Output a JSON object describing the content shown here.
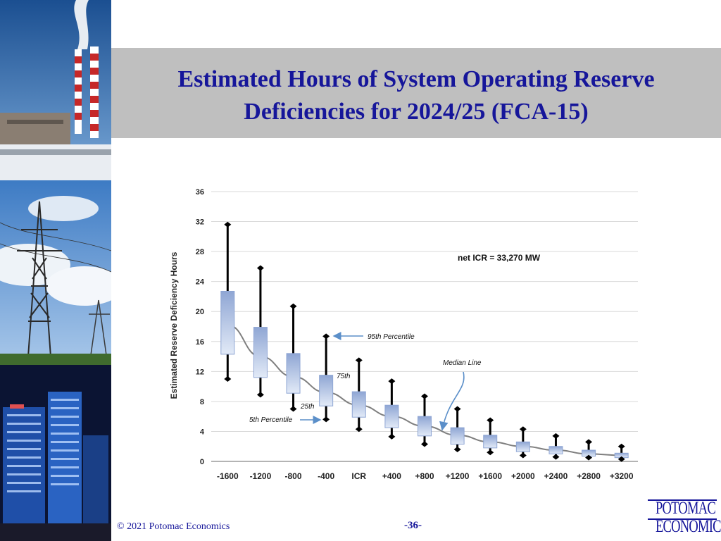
{
  "slide": {
    "title_line1": "Estimated Hours of System Operating Reserve",
    "title_line2": "Deficiencies for 2024/25 (FCA-15)",
    "copyright": "© 2021 Potomac Economics",
    "page_number": "-36-",
    "logo_line1": "POTOMAC",
    "logo_line2": "ECONOMICS",
    "title_color": "#16169a",
    "title_band_color": "#bfbfbf"
  },
  "chart_data": {
    "type": "box",
    "title": "",
    "xlabel": "",
    "ylabel": "Estimated Reserve Deficiency Hours",
    "ylim": [
      0,
      36
    ],
    "yticks": [
      0,
      4,
      8,
      12,
      16,
      20,
      24,
      28,
      32,
      36
    ],
    "grid": true,
    "categories": [
      "-1600",
      "-1200",
      "-800",
      "-400",
      "ICR",
      "+400",
      "+800",
      "+1200",
      "+1600",
      "+2000",
      "+2400",
      "+2800",
      "+3200"
    ],
    "series": [
      {
        "p5": [
          11.0,
          8.9,
          7.0,
          5.6,
          4.3,
          3.3,
          2.3,
          1.6,
          1.2,
          0.8,
          0.6,
          0.5,
          0.3
        ],
        "p25": [
          14.3,
          11.2,
          9.1,
          7.4,
          5.9,
          4.5,
          3.4,
          2.3,
          1.8,
          1.3,
          1.0,
          0.7,
          0.5
        ],
        "median": [
          18.2,
          14.0,
          11.3,
          9.2,
          7.5,
          6.0,
          4.7,
          3.5,
          2.6,
          2.0,
          1.5,
          1.0,
          0.8
        ],
        "p75": [
          22.7,
          17.9,
          14.4,
          11.5,
          9.3,
          7.5,
          6.0,
          4.5,
          3.5,
          2.6,
          2.0,
          1.5,
          1.1
        ],
        "p95": [
          31.6,
          25.8,
          20.7,
          16.7,
          13.5,
          10.7,
          8.7,
          7.0,
          5.5,
          4.3,
          3.4,
          2.6,
          2.0
        ]
      }
    ],
    "median_curve": [
      18.2,
      14.0,
      11.3,
      9.2,
      7.5,
      6.0,
      4.7,
      3.5,
      2.6,
      2.0,
      1.5,
      1.0,
      0.8
    ],
    "annotations": {
      "net_icr": "net ICR = 33,270 MW",
      "p95": "95th Percentile",
      "p75": "75th",
      "p25": "25th",
      "p5": "5th Percentile",
      "median": "Median Line"
    },
    "colors": {
      "box_top": "#8fa6d4",
      "box_bottom": "#e2eaf7",
      "whisker": "#000000",
      "median_line": "#7f7f7f",
      "arrow": "#5b8fc9",
      "grid": "#d9d9d9"
    }
  }
}
